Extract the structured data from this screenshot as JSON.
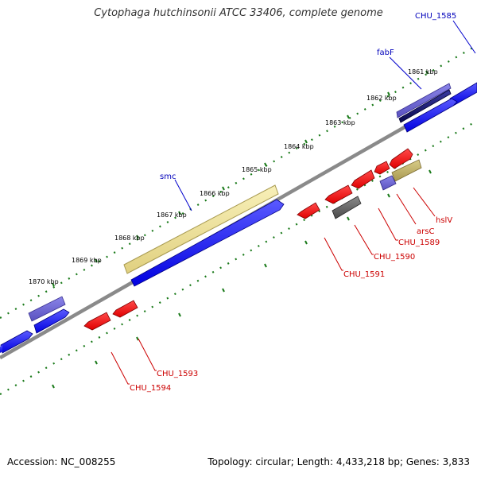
{
  "map": {
    "title": "Cytophaga hutchinsonii ATCC 33406, complete genome",
    "accession_label": "Accession: NC_008255",
    "summary_label": "Topology: circular; Length: 4,433,218 bp; Genes: 3,833",
    "ticks": [
      "1861 kbp",
      "1862 kbp",
      "1863 kbp",
      "1864 kbp",
      "1865 kbp",
      "1866 kbp",
      "1867 kbp",
      "1868 kbp",
      "1869 kbp",
      "1870 kbp"
    ],
    "forward_labels": [
      "CHU_1585",
      "fabF",
      "smc"
    ],
    "reverse_labels": [
      "hslV",
      "arsC",
      "CHU_1589",
      "CHU_1590",
      "CHU_1591",
      "CHU_1593",
      "CHU_1594"
    ]
  },
  "colors": {
    "forward_gene": "#0000ee",
    "reverse_gene": "#ee0000",
    "forward_label": "#0000bb",
    "reverse_label": "#cc0000",
    "backbone": "#808080",
    "tick": "#1a7a1a"
  }
}
